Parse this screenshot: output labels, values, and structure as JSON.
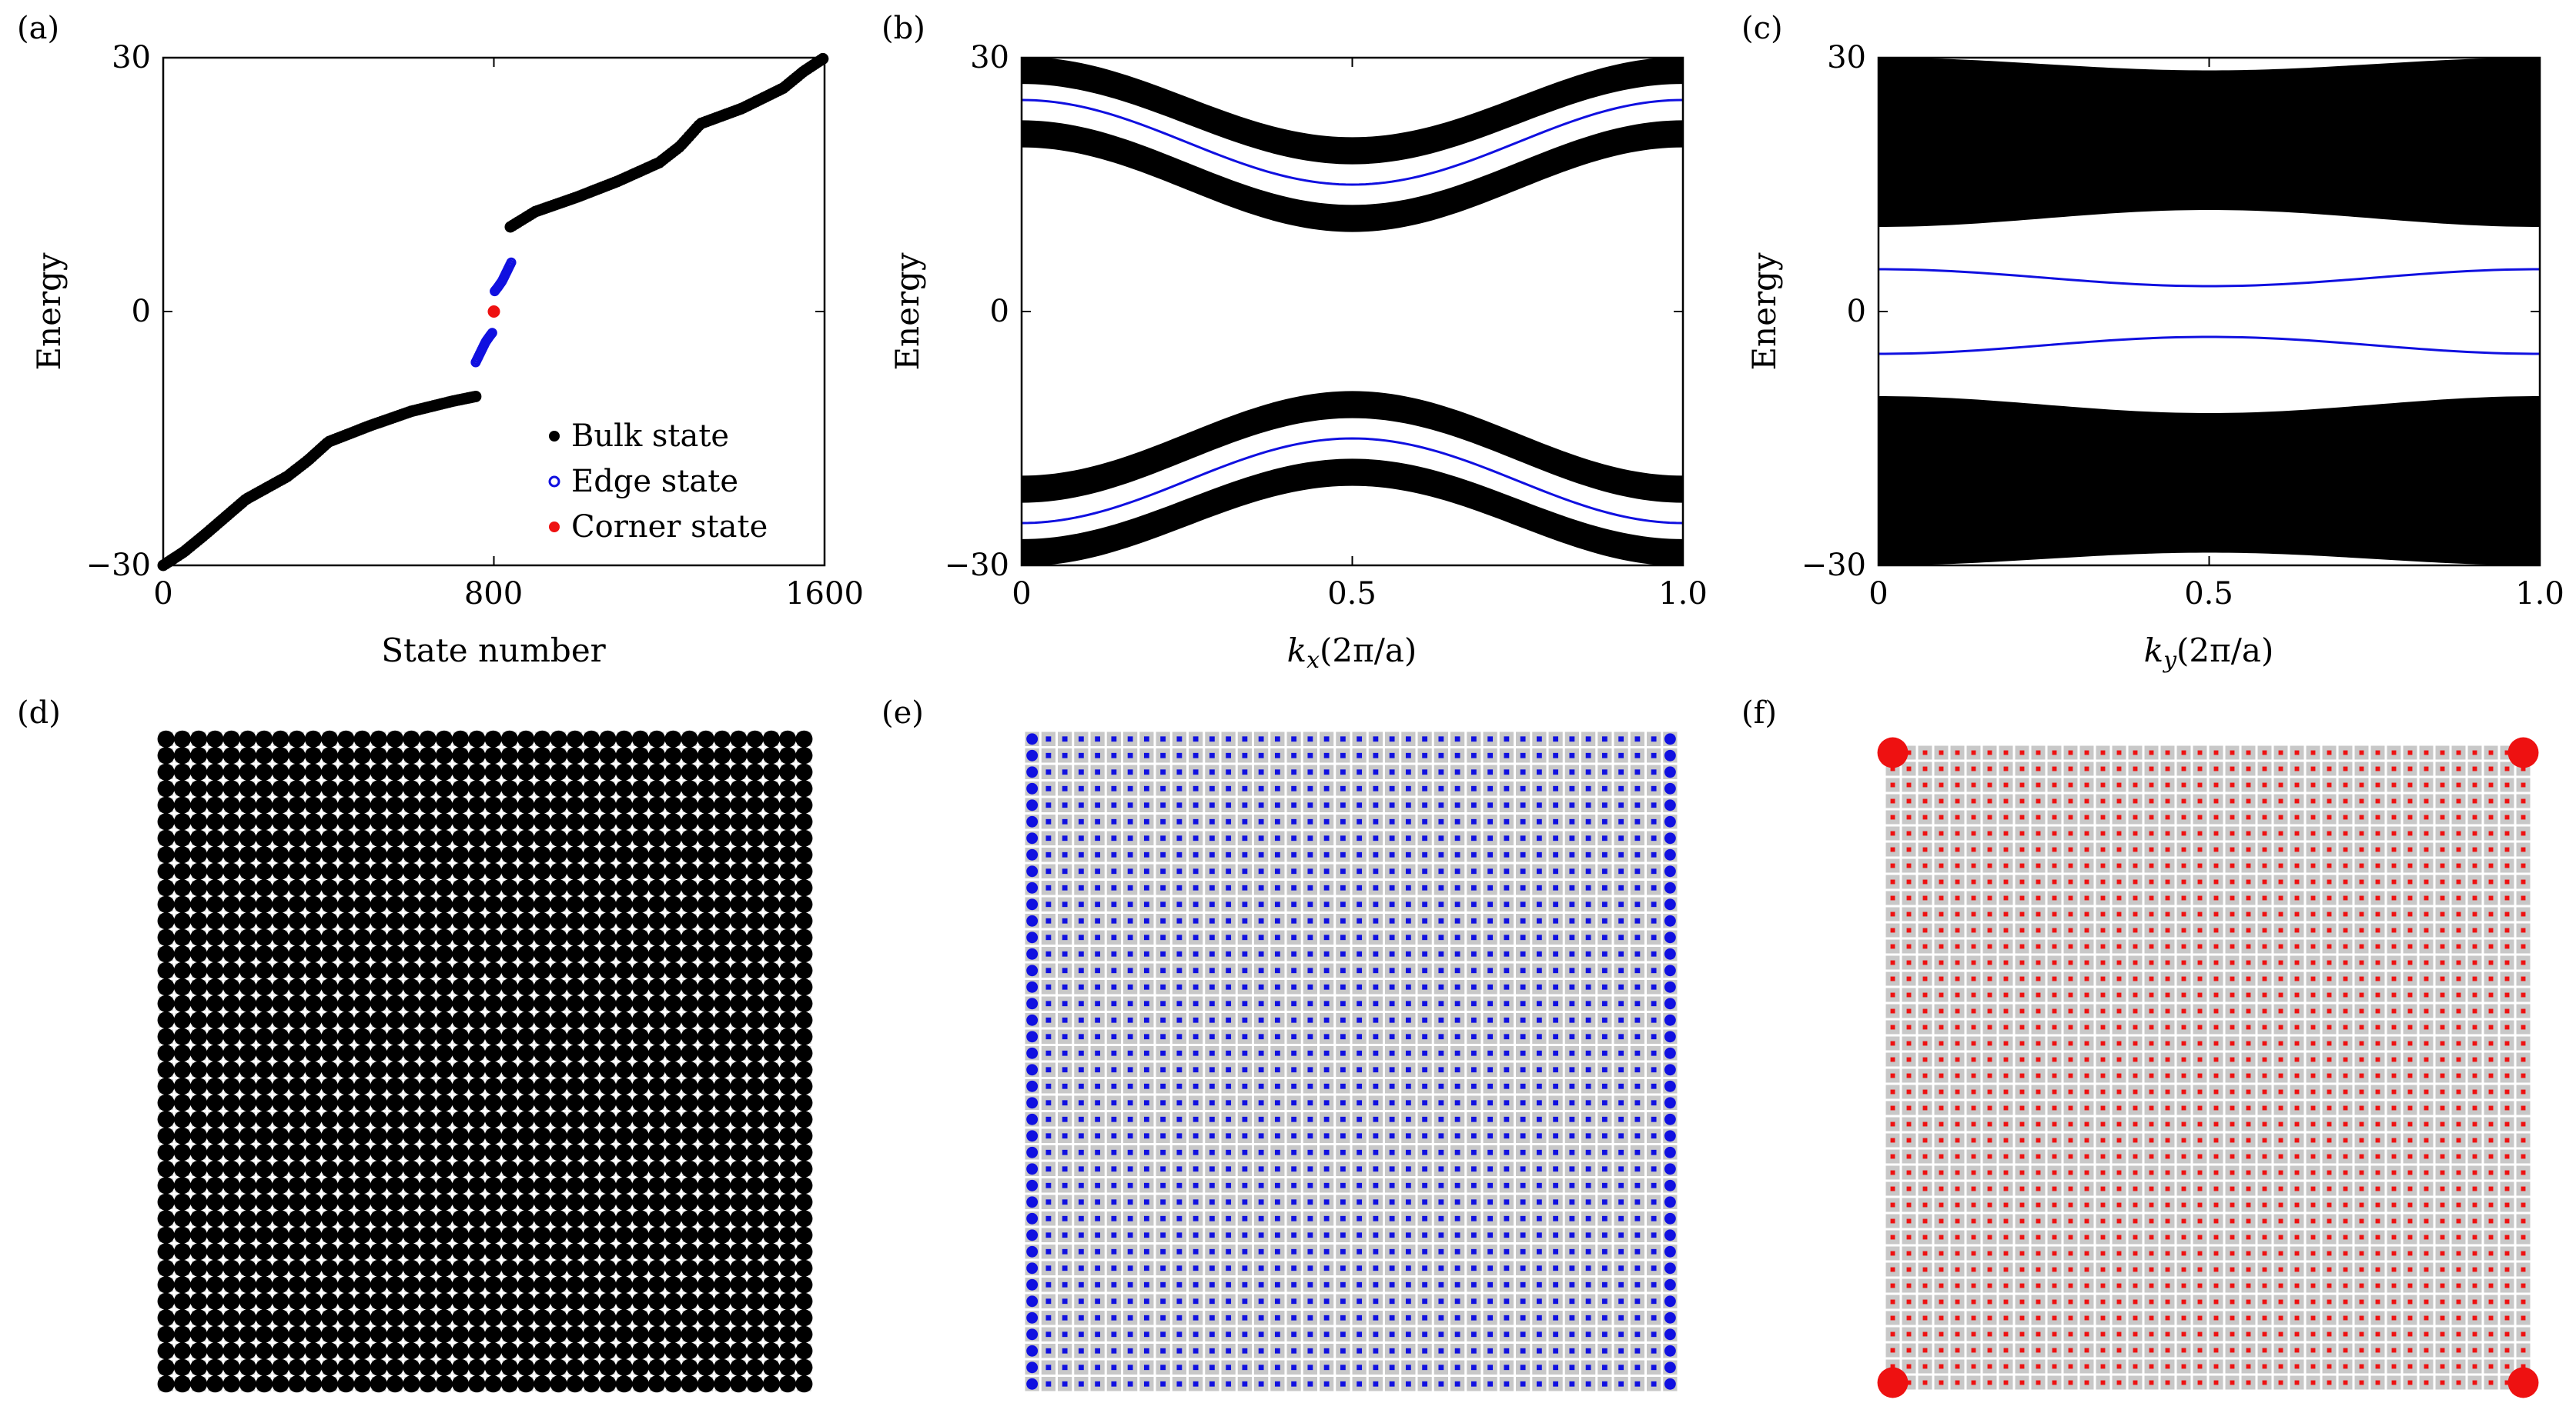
{
  "figure": {
    "panel_labels": [
      "(a)",
      "(b)",
      "(c)",
      "(d)",
      "(e)",
      "(f)"
    ]
  },
  "colors": {
    "bulk": "#000000",
    "edge": "#1010e0",
    "corner": "#ee1111",
    "lattice_gray": "#c8c8c8"
  },
  "chart_data": [
    {
      "panel": "a",
      "type": "scatter",
      "xlabel": "State number",
      "ylabel": "Energy",
      "xlim": [
        0,
        1600
      ],
      "ylim": [
        -30,
        30
      ],
      "x_ticks": [
        "0",
        "800",
        "1600"
      ],
      "y_ticks": [
        "−30",
        "0",
        "30"
      ],
      "legend_position": "bottom-right",
      "series": [
        {
          "name": "Bulk state",
          "color": "#000000",
          "segments": [
            {
              "x": [
                0,
                50,
                100,
                200,
                300,
                350,
                400,
                500,
                600,
                700,
                760
              ],
              "y": [
                -30,
                -28.4,
                -26.4,
                -22.2,
                -19.5,
                -17.6,
                -15.4,
                -13.5,
                -11.8,
                -10.6,
                -10
              ]
            },
            {
              "x": [
                840,
                900,
                1000,
                1100,
                1200,
                1250,
                1300,
                1400,
                1500,
                1550,
                1600
              ],
              "y": [
                10,
                11.8,
                13.5,
                15.4,
                17.6,
                19.5,
                22.2,
                24.0,
                26.4,
                28.4,
                30
              ]
            }
          ]
        },
        {
          "name": "Edge state",
          "color": "#1010e0",
          "segments": [
            {
              "x": [
                756,
                768,
                780,
                790,
                798
              ],
              "y": [
                -6.0,
                -4.8,
                -3.6,
                -2.9,
                -2.4
              ]
            },
            {
              "x": [
                802,
                810,
                820,
                832,
                844
              ],
              "y": [
                2.4,
                2.9,
                3.6,
                4.8,
                6.0
              ]
            }
          ]
        },
        {
          "name": "Corner state",
          "color": "#ee1111",
          "points": [
            {
              "x": 800,
              "y": 0
            }
          ]
        }
      ]
    },
    {
      "panel": "b",
      "type": "line",
      "xlabel": "kₓ(2π/a)",
      "xlabel_main": "k",
      "xlabel_sub": "x",
      "xlabel_rest": "(2π/a)",
      "ylabel": "Energy",
      "xlim": [
        0,
        1.0
      ],
      "ylim": [
        -30,
        30
      ],
      "x_ticks": [
        "0",
        "0.5",
        "1.0"
      ],
      "y_ticks": [
        "−30",
        "0",
        "30"
      ],
      "bands": [
        {
          "color": "#000000",
          "center_edge": 28.5,
          "center_mid": 19,
          "width": 1.6
        },
        {
          "color": "#000000",
          "center_edge": 21,
          "center_mid": 11,
          "width": 1.6
        },
        {
          "color": "#000000",
          "center_edge": -21,
          "center_mid": -11,
          "width": 1.6
        },
        {
          "color": "#000000",
          "center_edge": -28.5,
          "center_mid": -19,
          "width": 1.6
        }
      ],
      "lines": [
        {
          "color": "#1010e0",
          "value_edge": 25,
          "value_mid": 15
        },
        {
          "color": "#1010e0",
          "value_edge": -25,
          "value_mid": -15
        }
      ]
    },
    {
      "panel": "c",
      "type": "line",
      "xlabel": "kᵧ(2π/a)",
      "xlabel_main": "k",
      "xlabel_sub": "y",
      "xlabel_rest": "(2π/a)",
      "ylabel": "Energy",
      "xlim": [
        0,
        1.0
      ],
      "ylim": [
        -30,
        30
      ],
      "x_ticks": [
        "0",
        "0.5",
        "1.0"
      ],
      "y_ticks": [
        "−30",
        "0",
        "30"
      ],
      "filled_bands": [
        {
          "color": "#000000",
          "top_edge": 30,
          "top_mid": 28.5,
          "bottom_edge": 10,
          "bottom_mid": 12
        },
        {
          "color": "#000000",
          "top_edge": -10,
          "top_mid": -12,
          "bottom_edge": -30,
          "bottom_mid": -28.5
        }
      ],
      "lines": [
        {
          "color": "#1010e0",
          "value_edge": 5,
          "value_mid": 3
        },
        {
          "color": "#1010e0",
          "value_edge": -5,
          "value_mid": -3
        }
      ]
    },
    {
      "panel": "d",
      "type": "heatmap",
      "description_state": "bulk",
      "lattice_columns": 40,
      "lattice_rows": 40,
      "dot_color": "#000000",
      "dot_amplitude": "uniform"
    },
    {
      "panel": "e",
      "type": "heatmap",
      "description_state": "edge",
      "lattice_columns": 40,
      "lattice_rows": 40,
      "dot_color": "#1010e0",
      "dot_amplitude": "left-right-edges"
    },
    {
      "panel": "f",
      "type": "heatmap",
      "description_state": "corner",
      "lattice_columns": 40,
      "lattice_rows": 40,
      "dot_color": "#ee1111",
      "dot_amplitude": "four-corners"
    }
  ]
}
